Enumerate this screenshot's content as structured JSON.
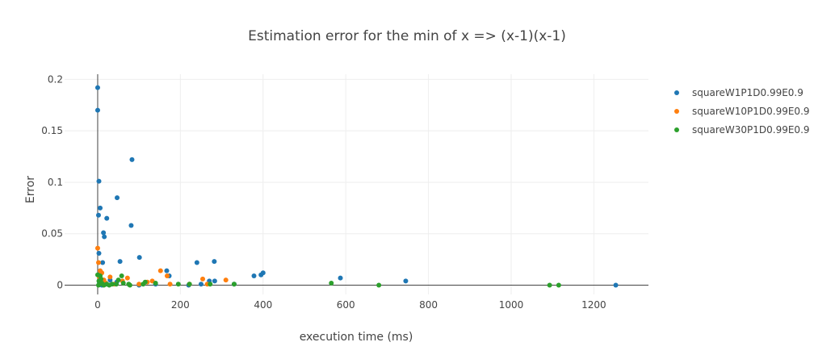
{
  "chart_data": {
    "type": "scatter",
    "title": "Estimation error for the min of x => (x-1)(x-1)",
    "xlabel": "execution time (ms)",
    "ylabel": "Error",
    "xlim": [
      -80,
      1332
    ],
    "ylim": [
      -0.009,
      0.205
    ],
    "xticks": [
      0,
      200,
      400,
      600,
      800,
      1000,
      1200
    ],
    "xtick_labels": [
      "0",
      "200",
      "400",
      "600",
      "800",
      "1000",
      "1200"
    ],
    "yticks": [
      0,
      0.05,
      0.1,
      0.15,
      0.2
    ],
    "ytick_labels": [
      "0",
      "0.05",
      "0.1",
      "0.15",
      "0.2"
    ],
    "grid": true,
    "legend_position": "top-right",
    "series": [
      {
        "name": "squareW1P1D0.99E0.9",
        "color": "#1f77b4",
        "points": [
          [
            0,
            0.192
          ],
          [
            0,
            0.17
          ],
          [
            3,
            0.101
          ],
          [
            2,
            0.068
          ],
          [
            6,
            0.075
          ],
          [
            3,
            0.031
          ],
          [
            14,
            0.051
          ],
          [
            16,
            0.047
          ],
          [
            22,
            0.065
          ],
          [
            12,
            0.022
          ],
          [
            47,
            0.085
          ],
          [
            83,
            0.122
          ],
          [
            81,
            0.058
          ],
          [
            54,
            0.023
          ],
          [
            101,
            0.027
          ],
          [
            167,
            0.014
          ],
          [
            173,
            0.009
          ],
          [
            240,
            0.022
          ],
          [
            282,
            0.023
          ],
          [
            270,
            0.004
          ],
          [
            283,
            0.004
          ],
          [
            250,
            0.001
          ],
          [
            378,
            0.009
          ],
          [
            395,
            0.01
          ],
          [
            400,
            0.012
          ],
          [
            587,
            0.007
          ],
          [
            745,
            0.004
          ],
          [
            1253,
            0.0
          ],
          [
            2,
            0.01
          ],
          [
            8,
            0.012
          ],
          [
            4,
            0.003
          ],
          [
            10,
            0.0
          ],
          [
            20,
            0.001
          ],
          [
            46,
            0.003
          ],
          [
            100,
            0.0
          ],
          [
            140,
            0.001
          ],
          [
            220,
            0.0
          ],
          [
            330,
            0.001
          ],
          [
            30,
            0.005
          ]
        ]
      },
      {
        "name": "squareW10P1D0.99E0.9",
        "color": "#ff7f0e",
        "points": [
          [
            0,
            0.036
          ],
          [
            2,
            0.022
          ],
          [
            6,
            0.014
          ],
          [
            10,
            0.012
          ],
          [
            4,
            0.008
          ],
          [
            15,
            0.005
          ],
          [
            30,
            0.008
          ],
          [
            40,
            0.001
          ],
          [
            60,
            0.004
          ],
          [
            72,
            0.007
          ],
          [
            100,
            0.001
          ],
          [
            120,
            0.003
          ],
          [
            132,
            0.004
          ],
          [
            152,
            0.014
          ],
          [
            168,
            0.009
          ],
          [
            175,
            0.001
          ],
          [
            222,
            0.001
          ],
          [
            254,
            0.006
          ],
          [
            265,
            0.001
          ],
          [
            310,
            0.005
          ],
          [
            8,
            0.003
          ],
          [
            20,
            0.002
          ]
        ]
      },
      {
        "name": "squareW30P1D0.99E0.9",
        "color": "#2ca02c",
        "points": [
          [
            0,
            0.01
          ],
          [
            3,
            0.004
          ],
          [
            6,
            0.009
          ],
          [
            2,
            0.0
          ],
          [
            10,
            0.002
          ],
          [
            15,
            0.0
          ],
          [
            22,
            0.001
          ],
          [
            28,
            0.0
          ],
          [
            35,
            0.001
          ],
          [
            45,
            0.001
          ],
          [
            58,
            0.009
          ],
          [
            62,
            0.002
          ],
          [
            75,
            0.001
          ],
          [
            78,
            0.0
          ],
          [
            110,
            0.001
          ],
          [
            115,
            0.003
          ],
          [
            140,
            0.002
          ],
          [
            195,
            0.001
          ],
          [
            222,
            0.001
          ],
          [
            272,
            0.001
          ],
          [
            330,
            0.001
          ],
          [
            565,
            0.002
          ],
          [
            680,
            0.0
          ],
          [
            1093,
            0.0
          ],
          [
            1115,
            0.0
          ],
          [
            8,
            0.006
          ],
          [
            12,
            0.001
          ],
          [
            50,
            0.005
          ]
        ]
      }
    ]
  }
}
